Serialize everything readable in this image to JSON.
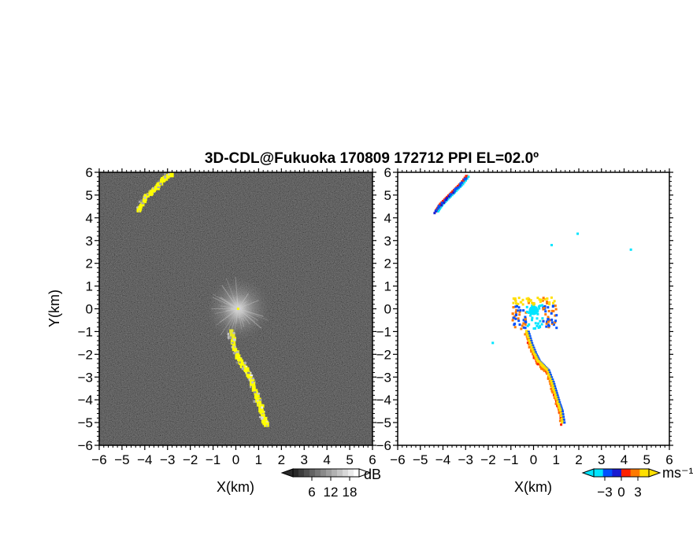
{
  "chart_data": [
    {
      "type": "heatmap",
      "title": "3D-CDL@Fukuoka 170809 172712 PPI EL=02.0º",
      "panel": "reflectivity",
      "xlabel": "X(km)",
      "ylabel": "Y(km)",
      "xlim": [
        -6,
        6
      ],
      "ylim": [
        -6,
        6
      ],
      "xticks": [
        "−6",
        "−5",
        "−4",
        "−3",
        "−2",
        "−1",
        "0",
        "1",
        "2",
        "3",
        "4",
        "5",
        "6"
      ],
      "yticks": [
        "−6",
        "−5",
        "−4",
        "−3",
        "−2",
        "−1",
        "0",
        "1",
        "2",
        "3",
        "4",
        "5",
        "6"
      ],
      "colorbar": {
        "unit": "dB",
        "ticks": [
          "6",
          "12",
          "18"
        ],
        "range": [
          0,
          21
        ],
        "colors": [
          "#000000",
          "#ffffff"
        ]
      },
      "highlight_color": "#ffff00",
      "echoes": [
        {
          "kind": "band",
          "points": [
            [
              -4.3,
              4.4
            ],
            [
              -4.0,
              4.9
            ],
            [
              -3.6,
              5.3
            ],
            [
              -3.2,
              5.7
            ],
            [
              -2.8,
              6.0
            ]
          ],
          "value": 16
        },
        {
          "kind": "band",
          "points": [
            [
              -0.25,
              -1.0
            ],
            [
              -0.1,
              -1.6
            ],
            [
              0.1,
              -2.2
            ],
            [
              0.3,
              -2.5
            ],
            [
              0.5,
              -2.8
            ],
            [
              0.75,
              -3.3
            ],
            [
              0.9,
              -3.9
            ],
            [
              1.05,
              -4.3
            ],
            [
              1.2,
              -4.8
            ],
            [
              1.3,
              -5.1
            ]
          ],
          "value": 18
        },
        {
          "kind": "burst",
          "center": [
            0.1,
            0.0
          ],
          "value": 10
        }
      ]
    },
    {
      "type": "heatmap",
      "panel": "velocity",
      "xlabel": "X(km)",
      "xlim": [
        -6,
        6
      ],
      "ylim": [
        -6,
        6
      ],
      "xticks": [
        "−6",
        "−5",
        "−4",
        "−3",
        "−2",
        "−1",
        "0",
        "1",
        "2",
        "3",
        "4",
        "5",
        "6"
      ],
      "yticks": [
        "−6",
        "−5",
        "−4",
        "−3",
        "−2",
        "−1",
        "0",
        "1",
        "2",
        "3",
        "4",
        "5",
        "6"
      ],
      "colorbar": {
        "unit": "ms⁻¹",
        "ticks": [
          "−3",
          "0",
          "3"
        ],
        "range": [
          -5,
          5
        ],
        "colors": [
          "#00e5ff",
          "#0050ff",
          "#1a1ad0",
          "#ff2000",
          "#ff7a00",
          "#ffe000"
        ]
      },
      "echoes": [
        {
          "kind": "band",
          "points": [
            [
              -4.3,
              4.3
            ],
            [
              -4.1,
              4.6
            ],
            [
              -3.8,
              4.9
            ],
            [
              -3.5,
              5.2
            ],
            [
              -3.2,
              5.5
            ],
            [
              -2.9,
              5.9
            ]
          ],
          "value": -2
        },
        {
          "kind": "band",
          "points": [
            [
              -0.3,
              -1.0
            ],
            [
              -0.15,
              -1.5
            ],
            [
              0.05,
              -2.0
            ],
            [
              0.2,
              -2.3
            ],
            [
              0.4,
              -2.5
            ],
            [
              0.6,
              -2.7
            ],
            [
              0.8,
              -3.2
            ],
            [
              0.95,
              -3.7
            ],
            [
              1.1,
              -4.2
            ],
            [
              1.2,
              -4.5
            ],
            [
              1.3,
              -5.1
            ]
          ],
          "value": 2
        },
        {
          "kind": "cluster",
          "center": [
            0.0,
            0.0
          ],
          "value": 0
        },
        {
          "kind": "dots",
          "points": [
            [
              0.8,
              2.8
            ],
            [
              1.95,
              3.3
            ],
            [
              4.3,
              2.6
            ],
            [
              -1.8,
              -1.5
            ]
          ],
          "value": -4
        }
      ]
    }
  ]
}
